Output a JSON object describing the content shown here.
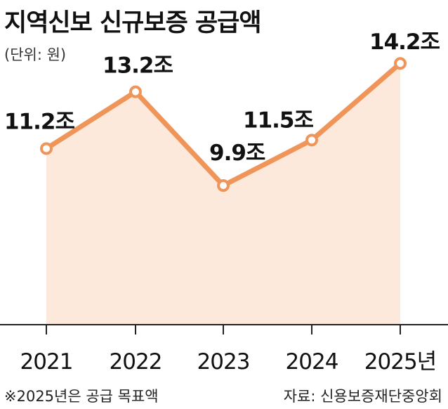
{
  "title": "지역신보 신규보증 공급액",
  "unit_label": "(단위: 원)",
  "footnote": "※2025년은 공급 목표액",
  "source": "자료: 신용보증재단중앙회",
  "colors": {
    "line": "#f0955a",
    "area": "#fce9dc",
    "marker_fill": "#ffffff",
    "axis": "#222222"
  },
  "chart_data": {
    "type": "area",
    "categories": [
      "2021",
      "2022",
      "2023",
      "2024",
      "2025년"
    ],
    "values": [
      11.2,
      13.2,
      9.9,
      11.5,
      14.2
    ],
    "value_labels": [
      "11.2조",
      "13.2조",
      "9.9조",
      "11.5조",
      "14.2조"
    ],
    "ylim": [
      5.0,
      14.7
    ],
    "grid": false,
    "legend": "none"
  }
}
